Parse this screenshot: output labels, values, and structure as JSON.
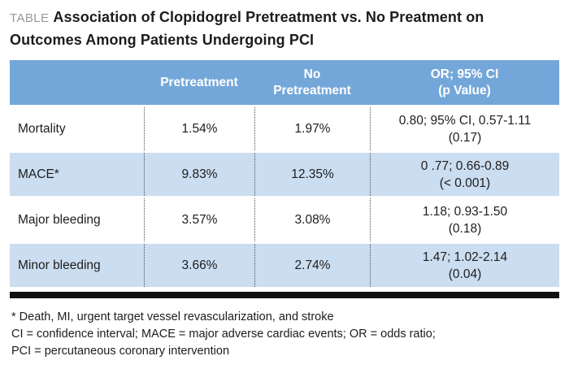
{
  "title": {
    "label": "TABLE",
    "text": "Association of Clopidogrel Pretreatment vs. No Preatment on Outcomes Among Patients Undergoing PCI"
  },
  "table": {
    "headers": {
      "outcome": "",
      "pretreatment": "Pretreatment",
      "no_pretreatment": "No\nPretreatment",
      "or_ci": "OR; 95% CI\n(p Value)"
    },
    "rows": [
      {
        "outcome": "Mortality",
        "pretreatment": "1.54%",
        "no_pretreatment": "1.97%",
        "or_ci": "0.80; 95% CI, 0.57-1.11\n(0.17)"
      },
      {
        "outcome": "MACE*",
        "pretreatment": "9.83%",
        "no_pretreatment": "12.35%",
        "or_ci": "0 .77; 0.66-0.89\n(< 0.001)"
      },
      {
        "outcome": "Major bleeding",
        "pretreatment": "3.57%",
        "no_pretreatment": "3.08%",
        "or_ci": "1.18; 0.93-1.50\n(0.18)"
      },
      {
        "outcome": "Minor bleeding",
        "pretreatment": "3.66%",
        "no_pretreatment": "2.74%",
        "or_ci": "1.47; 1.02-2.14\n(0.04)"
      }
    ]
  },
  "footnotes": [
    "* Death, MI, urgent target vessel revascularization, and stroke",
    "CI = confidence interval; MACE = major adverse cardiac events; OR = odds ratio;",
    "PCI = percutaneous coronary intervention"
  ],
  "colors": {
    "header_blue": "#74a7d9",
    "row_light_blue": "#cbddf0",
    "divider_black": "#101010",
    "table_label_gray": "#979797"
  }
}
